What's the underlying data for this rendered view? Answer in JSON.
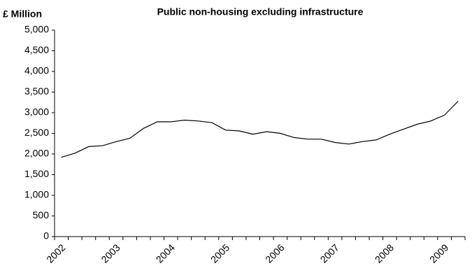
{
  "chart_data": {
    "type": "line",
    "title": "Public non-housing excluding infrastructure",
    "y_label": "£ Million",
    "categories": [
      "2002",
      null,
      null,
      null,
      "2003",
      null,
      null,
      null,
      "2004",
      null,
      null,
      null,
      "2005",
      null,
      null,
      null,
      "2006",
      null,
      null,
      null,
      "2007",
      null,
      null,
      null,
      "2008",
      null,
      null,
      null,
      "2009",
      null
    ],
    "values": [
      1920,
      2020,
      2180,
      2200,
      2300,
      2380,
      2620,
      2780,
      2780,
      2820,
      2800,
      2760,
      2580,
      2560,
      2480,
      2540,
      2500,
      2400,
      2360,
      2360,
      2280,
      2240,
      2300,
      2340,
      2480,
      2600,
      2720,
      2800,
      2940,
      3280
    ],
    "color": "#000000",
    "ylim": [
      0,
      5000
    ],
    "yticks": [
      0,
      500,
      {
        "value": 1000,
        "label": "1,000"
      },
      {
        "value": 1500,
        "label": "1,500"
      },
      {
        "value": 2000,
        "label": "2,000"
      },
      {
        "value": 2500,
        "label": "2,500"
      },
      {
        "value": 3000,
        "label": "3,000"
      },
      {
        "value": 3500,
        "label": "3,500"
      },
      {
        "value": 4000,
        "label": "4,000"
      },
      {
        "value": 4500,
        "label": "4,500"
      },
      {
        "value": 5000,
        "label": "5,000"
      }
    ],
    "grid": false
  }
}
